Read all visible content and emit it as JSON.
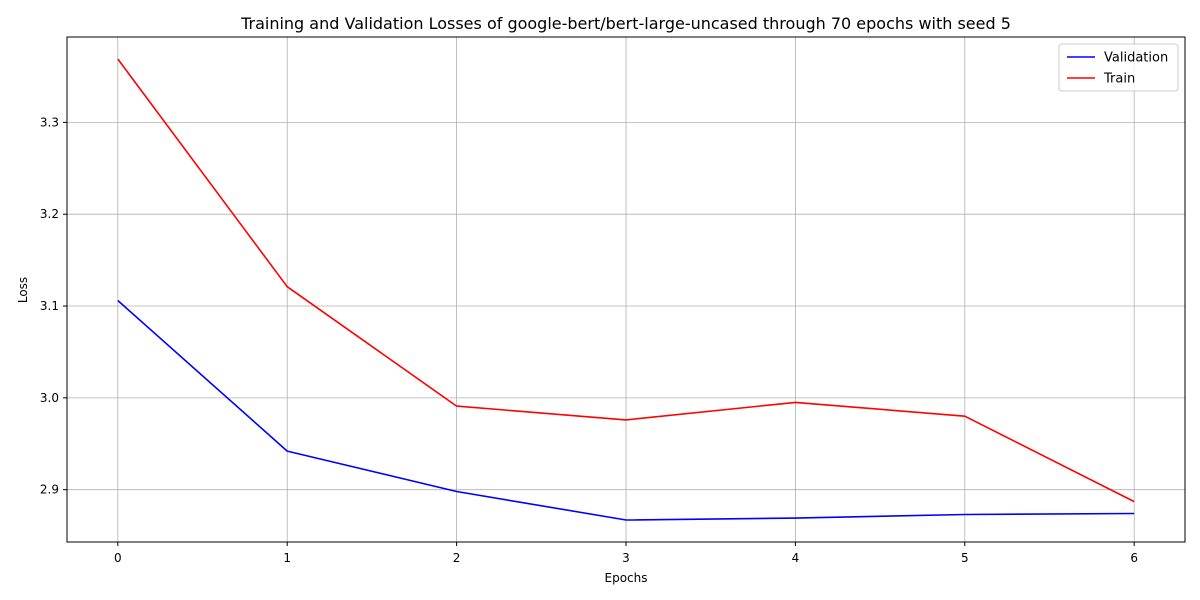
{
  "chart_data": {
    "type": "line",
    "title": "Training and Validation Losses of google-bert/bert-large-uncased through 70 epochs with seed 5",
    "xlabel": "Epochs",
    "ylabel": "Loss",
    "x": [
      0,
      1,
      2,
      3,
      4,
      5,
      6
    ],
    "xlim": [
      -0.3,
      6.3
    ],
    "ylim": [
      2.843,
      3.393
    ],
    "xticks": [
      0,
      1,
      2,
      3,
      4,
      5,
      6
    ],
    "yticks": [
      2.9,
      3.0,
      3.1,
      3.2,
      3.3
    ],
    "ytick_labels": [
      "2.9",
      "3.0",
      "3.1",
      "3.2",
      "3.3"
    ],
    "grid": true,
    "legend_position": "top-right",
    "series": [
      {
        "name": "Validation",
        "color": "#0000ff",
        "values": [
          3.106,
          2.942,
          2.898,
          2.867,
          2.869,
          2.873,
          2.874
        ]
      },
      {
        "name": "Train",
        "color": "#ff0000",
        "values": [
          3.369,
          3.121,
          2.991,
          2.976,
          2.995,
          2.98,
          2.887
        ]
      }
    ]
  }
}
